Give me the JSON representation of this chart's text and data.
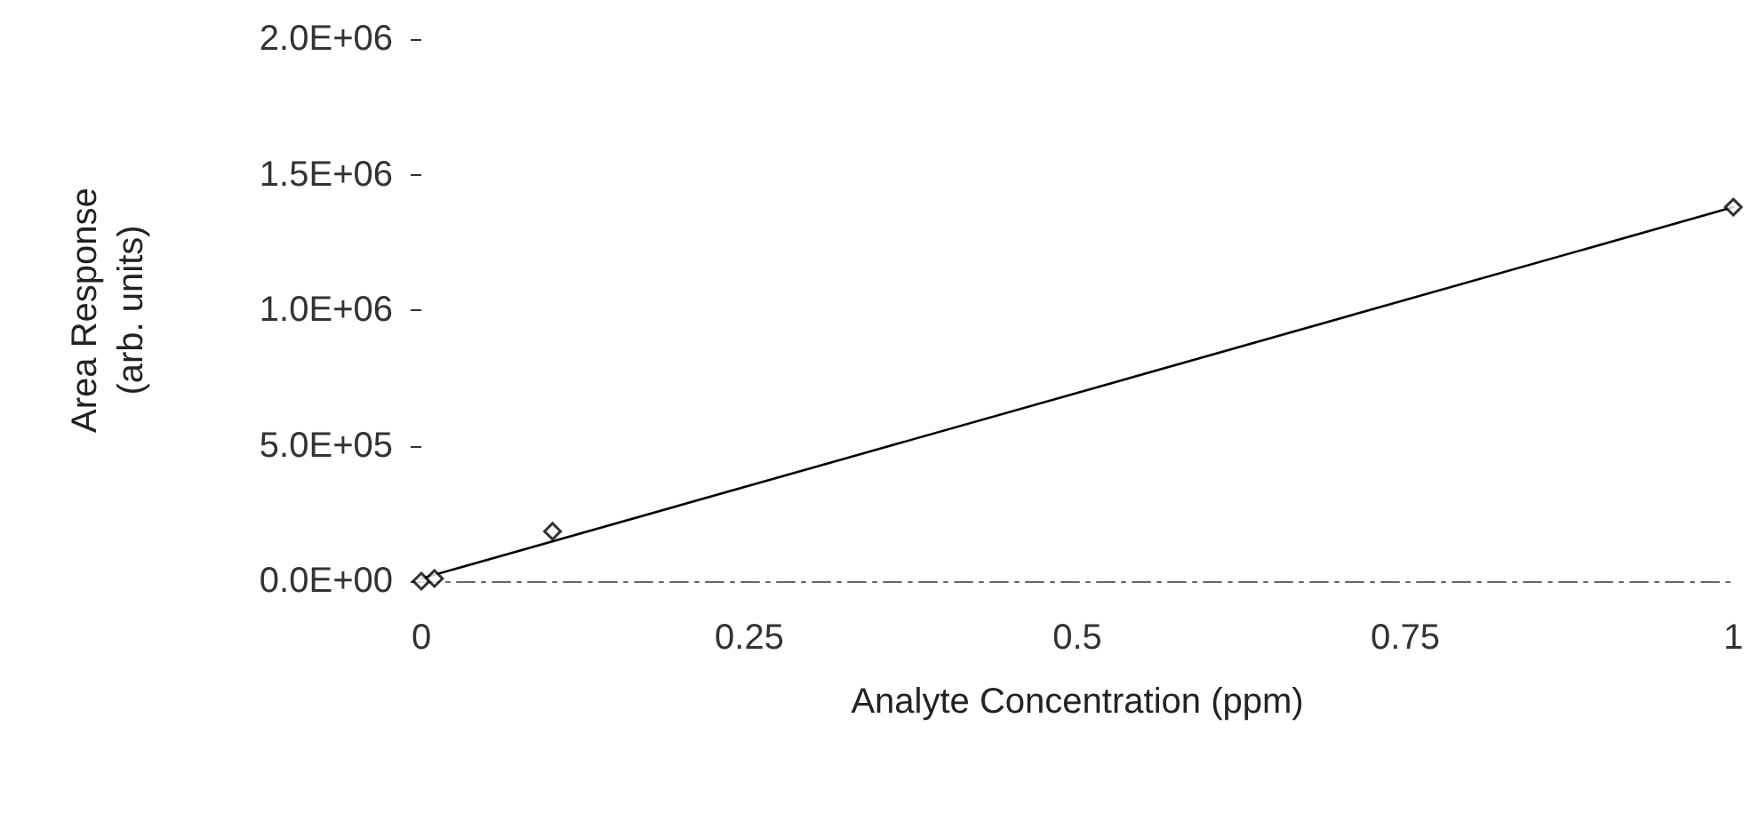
{
  "chart_data": {
    "type": "scatter",
    "xlabel": "Analyte Concentration (ppm)",
    "ylabel": "Area Response\n(arb. units)",
    "xlim": [
      0,
      1
    ],
    "xticks": [
      0,
      0.25,
      0.5,
      0.75,
      1
    ],
    "ylim": [
      0,
      2000000
    ],
    "yticks": [
      {
        "value": 0,
        "label": "0.0E+00"
      },
      {
        "value": 500000,
        "label": "5.0E+05"
      },
      {
        "value": 1000000,
        "label": "1.0E+06"
      },
      {
        "value": 1500000,
        "label": "1.5E+06"
      },
      {
        "value": 2000000,
        "label": "2.0E+06"
      }
    ],
    "grid": false,
    "series": [
      {
        "color": "#000000",
        "marker": "diamond",
        "x": [
          0,
          0.01,
          0.1,
          1
        ],
        "values": [
          0,
          10000,
          184000,
          1380000
        ]
      },
      {
        "type": "line",
        "color": "#000000",
        "line_style": "solid",
        "marker": "none",
        "x": [
          0,
          1
        ],
        "values": [
          10000,
          1380000
        ]
      }
    ]
  }
}
